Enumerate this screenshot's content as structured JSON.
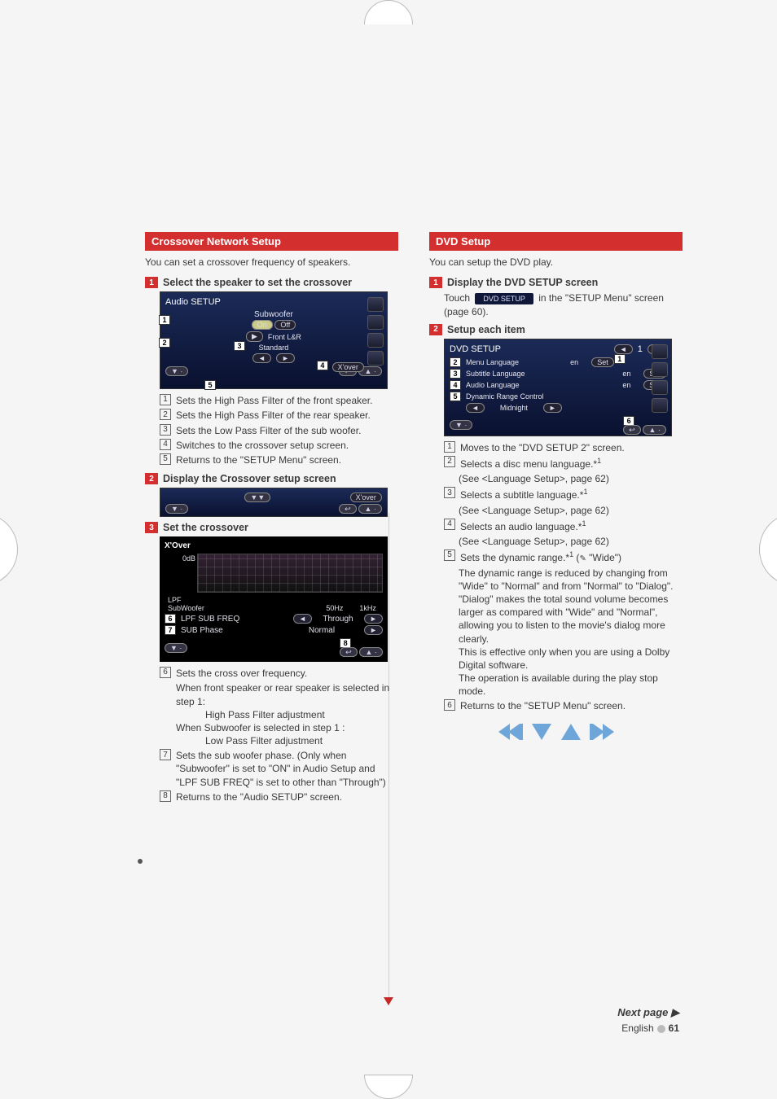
{
  "left": {
    "section_title": "Crossover Network Setup",
    "intro": "You can set a crossover frequency of speakers.",
    "step1": {
      "num": "1",
      "title": "Select the speaker to set the crossover"
    },
    "shot1": {
      "title": "Audio SETUP",
      "sub_label": "Subwoofer",
      "onoff_on": "On",
      "onoff_off": "Off",
      "front": "Front L&R",
      "standard": "Standard",
      "xover_btn": "X'over",
      "c1": "1",
      "c2": "2",
      "c3": "3",
      "c4": "4",
      "c5": "5"
    },
    "list1": [
      {
        "n": "1",
        "t": "Sets the High Pass Filter of the front speaker."
      },
      {
        "n": "2",
        "t": "Sets the High Pass Filter of the rear speaker."
      },
      {
        "n": "3",
        "t": "Sets the Low Pass Filter of the sub woofer."
      },
      {
        "n": "4",
        "t": "Switches to the crossover setup screen."
      },
      {
        "n": "5",
        "t": "Returns to the \"SETUP Menu\" screen."
      }
    ],
    "step2": {
      "num": "2",
      "title": "Display the Crossover setup screen"
    },
    "shot2": {
      "xover": "X'over"
    },
    "step3": {
      "num": "3",
      "title": "Set the crossover"
    },
    "shot3": {
      "title": "X'Over",
      "db": "0dB",
      "lpf": "LPF",
      "sub": "SubWoofer",
      "hzl": "50Hz",
      "hzr": "1kHz",
      "row1_label": "LPF SUB FREQ",
      "row1_val": "Through",
      "row2_label": "SUB Phase",
      "row2_val": "Normal",
      "c6": "6",
      "c7": "7",
      "c8": "8"
    },
    "list2": [
      {
        "n": "6",
        "t": "Sets the cross over frequency.",
        "sub": [
          "When front speaker or rear speaker is selected in step 1:",
          "High Pass Filter adjustment",
          "When Subwoofer is selected in step 1 :",
          "Low Pass Filter adjustment"
        ]
      },
      {
        "n": "7",
        "t": "Sets the sub woofer phase. (Only when \"Subwoofer\" is set to \"ON\" in Audio Setup and \"LPF SUB FREQ\" is set to other than \"Through\")"
      },
      {
        "n": "8",
        "t": "Returns to the \"Audio SETUP\" screen."
      }
    ]
  },
  "right": {
    "section_title": "DVD Setup",
    "intro": "You can setup the DVD play.",
    "step1": {
      "num": "1",
      "title": "Display the DVD SETUP screen"
    },
    "touch_label": "Touch",
    "touch_btn": "DVD SETUP",
    "touch_after": " in the \"SETUP Menu\" screen (page 60).",
    "step2": {
      "num": "2",
      "title": "Setup each item"
    },
    "shot": {
      "title": "DVD SETUP",
      "rows": [
        {
          "label": "Menu Language",
          "val": "en",
          "btn": "Set",
          "c": "2"
        },
        {
          "label": "Subtitle Language",
          "val": "en",
          "btn": "Set",
          "c": "3"
        },
        {
          "label": "Audio Language",
          "val": "en",
          "btn": "Set",
          "c": "4"
        }
      ],
      "drc": "Dynamic Range Control",
      "drc_val": "Midnight",
      "drc_c": "5",
      "c1": "1",
      "c6": "6"
    },
    "list": [
      {
        "n": "1",
        "t": "Moves to the \"DVD SETUP 2\" screen."
      },
      {
        "n": "2",
        "t": "Selects a disc menu language.*",
        "s": "1",
        "sub": "(See <Language Setup>, page 62)"
      },
      {
        "n": "3",
        "t": "Selects a subtitle language.*",
        "s": "1",
        "sub": "(See <Language Setup>, page 62)"
      },
      {
        "n": "4",
        "t": "Selects an audio language.*",
        "s": "1",
        "sub": "(See <Language Setup>, page 62)"
      },
      {
        "n": "5",
        "t": "Sets the dynamic range.*",
        "s": "1",
        "pen": " \"Wide\")",
        "body": "The dynamic range is reduced by changing from \"Wide\" to \"Normal\" and from \"Normal\" to \"Dialog\". \"Dialog\" makes the total sound volume becomes larger as compared with \"Wide\" and \"Normal\", allowing you to listen to the movie's dialog more clearly.",
        "body2": "This is effective only when you are using a Dolby Digital software.",
        "body3": "The operation is available during the play stop mode."
      },
      {
        "n": "6",
        "t": "Returns to the \"SETUP Menu\" screen."
      }
    ]
  },
  "footer": {
    "next": "Next page ",
    "english": "English",
    "page": "61",
    "tri": "▶"
  }
}
